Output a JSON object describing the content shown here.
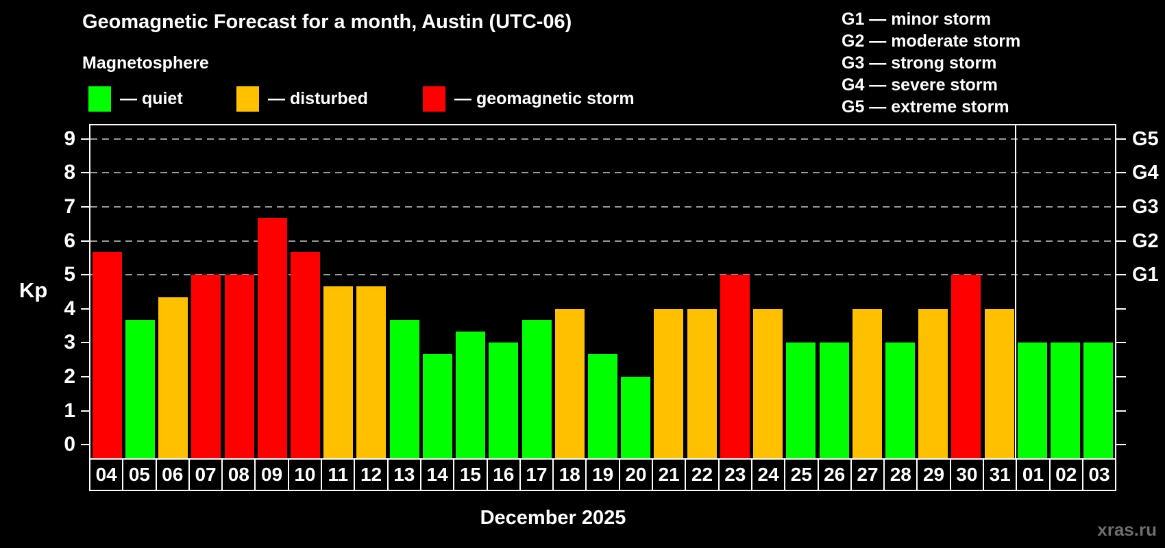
{
  "header": {
    "title": "Geomagnetic Forecast for a month, Austin (UTC-06)",
    "subtitle": "Magnetosphere",
    "legend": [
      {
        "key": "quiet",
        "label": "— quiet",
        "color": "#00ff00"
      },
      {
        "key": "disturbed",
        "label": "— disturbed",
        "color": "#ffc000"
      },
      {
        "key": "storm",
        "label": "— geomagnetic storm",
        "color": "#ff0000"
      }
    ],
    "storm_scale": [
      "G1 — minor storm",
      "G2 — moderate storm",
      "G3 — strong storm",
      "G4 — severe storm",
      "G5 — extreme storm"
    ]
  },
  "chart_data": {
    "type": "bar",
    "title": "Geomagnetic Forecast for a month, Austin (UTC-06)",
    "ylabel": "Kp",
    "xlabel": "December 2025",
    "ylim": [
      0,
      9
    ],
    "y_ticks": [
      0,
      1,
      2,
      3,
      4,
      5,
      6,
      7,
      8,
      9
    ],
    "gridline_kp": [
      5,
      6,
      7,
      8,
      9
    ],
    "grid": "dashed horizontal at Kp 5-9 only",
    "legend_position": "top-left",
    "categories": [
      "04",
      "05",
      "06",
      "07",
      "08",
      "09",
      "10",
      "11",
      "12",
      "13",
      "14",
      "15",
      "16",
      "17",
      "18",
      "19",
      "20",
      "21",
      "22",
      "23",
      "24",
      "25",
      "26",
      "27",
      "28",
      "29",
      "30",
      "31",
      "01",
      "02",
      "03"
    ],
    "values": [
      5.67,
      3.67,
      4.33,
      5,
      5,
      6.67,
      5.67,
      4.67,
      4.67,
      3.67,
      2.67,
      3.33,
      3,
      3.67,
      4,
      2.67,
      2,
      4,
      4,
      5,
      4,
      3,
      3,
      4,
      3,
      4,
      5,
      4,
      3,
      3,
      3
    ],
    "statuses": [
      "storm",
      "quiet",
      "disturbed",
      "storm",
      "storm",
      "storm",
      "storm",
      "disturbed",
      "disturbed",
      "quiet",
      "quiet",
      "quiet",
      "quiet",
      "quiet",
      "disturbed",
      "quiet",
      "quiet",
      "disturbed",
      "disturbed",
      "storm",
      "disturbed",
      "quiet",
      "quiet",
      "disturbed",
      "quiet",
      "disturbed",
      "storm",
      "disturbed",
      "quiet",
      "quiet",
      "quiet"
    ],
    "colors": {
      "quiet": "#00ff00",
      "disturbed": "#ffc000",
      "storm": "#ff0000"
    },
    "right_axis_labels": [
      {
        "kp": 9,
        "label": "G5"
      },
      {
        "kp": 8,
        "label": "G4"
      },
      {
        "kp": 7,
        "label": "G3"
      },
      {
        "kp": 6,
        "label": "G2"
      },
      {
        "kp": 5,
        "label": "G1"
      }
    ],
    "month_separator_after_index": 27
  },
  "footer": {
    "month_label": "December 2025",
    "watermark": "xras.ru"
  }
}
